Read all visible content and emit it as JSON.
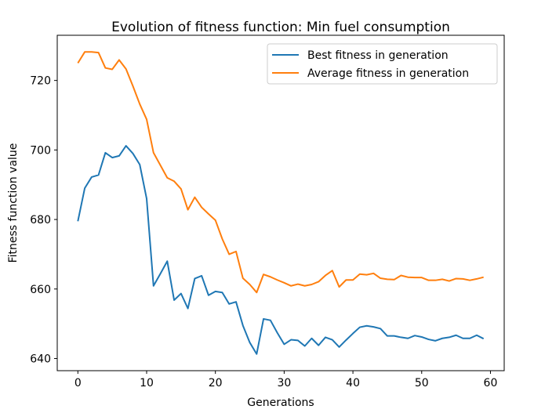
{
  "chart_data": {
    "type": "line",
    "title": "Evolution of fitness function: Min fuel consumption",
    "xlabel": "Generations",
    "ylabel": "Fitness function value",
    "xlim": [
      -3,
      62
    ],
    "ylim": [
      636.5,
      733
    ],
    "xticks": [
      0,
      10,
      20,
      30,
      40,
      50,
      60
    ],
    "yticks": [
      640,
      660,
      680,
      700,
      720
    ],
    "grid": false,
    "legend_position": "top-right",
    "x": [
      0,
      1,
      2,
      3,
      4,
      5,
      6,
      7,
      8,
      9,
      10,
      11,
      12,
      13,
      14,
      15,
      16,
      17,
      18,
      19,
      20,
      21,
      22,
      23,
      24,
      25,
      26,
      27,
      28,
      29,
      30,
      31,
      32,
      33,
      34,
      35,
      36,
      37,
      38,
      39,
      40,
      41,
      42,
      43,
      44,
      45,
      46,
      47,
      48,
      49,
      50,
      51,
      52,
      53,
      54,
      55,
      56,
      57,
      58,
      59
    ],
    "series": [
      {
        "name": "Best fitness in generation",
        "color": "#1f77b4",
        "values": [
          679.5,
          689,
          692.2,
          692.8,
          699.2,
          697.8,
          698.3,
          701.2,
          699,
          695.8,
          686,
          660.9,
          664.4,
          668,
          656.8,
          658.7,
          654.4,
          663,
          663.8,
          658.2,
          659.3,
          659,
          655.7,
          656.3,
          649.5,
          644.6,
          641.3,
          651.4,
          651,
          647.4,
          644.1,
          645.4,
          645.2,
          643.6,
          645.8,
          643.8,
          646.1,
          645.4,
          643.3,
          645.3,
          647.2,
          649,
          649.4,
          649.1,
          648.6,
          646.5,
          646.5,
          646.1,
          645.8,
          646.6,
          646.2,
          645.5,
          645.1,
          645.8,
          646.1,
          646.7,
          645.8,
          645.8,
          646.7,
          645.7
        ]
      },
      {
        "name": "Average fitness in generation",
        "color": "#ff7f0e",
        "values": [
          725,
          728.2,
          728.2,
          728,
          723.6,
          723.2,
          725.9,
          723.3,
          718.4,
          713.2,
          708.8,
          699.2,
          695.6,
          692,
          691,
          688.8,
          682.8,
          686.4,
          683.5,
          681.6,
          679.8,
          674.4,
          670,
          670.8,
          663.1,
          661.3,
          659,
          664.2,
          663.5,
          662.6,
          661.8,
          660.9,
          661.4,
          660.9,
          661.3,
          662.1,
          663.9,
          665.3,
          660.6,
          662.6,
          662.6,
          664.3,
          664.1,
          664.5,
          663.1,
          662.8,
          662.7,
          663.9,
          663.4,
          663.3,
          663.3,
          662.5,
          662.5,
          662.8,
          662.3,
          663,
          662.9,
          662.5,
          662.9,
          663.4
        ]
      }
    ]
  }
}
